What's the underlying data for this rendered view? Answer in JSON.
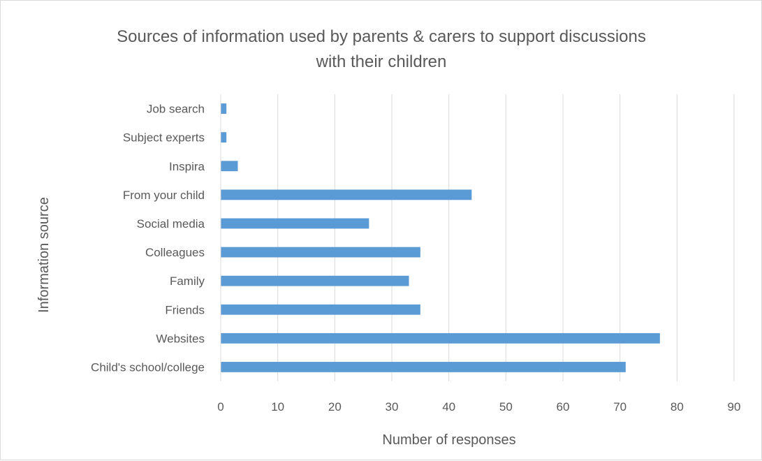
{
  "chart_data": {
    "type": "bar",
    "orientation": "horizontal",
    "title_lines": [
      "Sources of information used by parents & carers to support discussions",
      "with their children"
    ],
    "xlabel": "Number of responses",
    "ylabel": "Information source",
    "categories": [
      "Child's school/college",
      "Websites",
      "Friends",
      "Family",
      "Colleagues",
      "Social media",
      "From your child",
      "Inspira",
      "Subject experts",
      "Job search"
    ],
    "values": [
      71,
      77,
      35,
      33,
      35,
      26,
      44,
      3,
      1,
      1
    ],
    "xlim": [
      0,
      90
    ],
    "xticks": [
      0,
      10,
      20,
      30,
      40,
      50,
      60,
      70,
      80,
      90
    ],
    "grid": "vertical",
    "legend": "none",
    "bar_color": "#5b9bd5",
    "grid_color": "#d9d9d9"
  }
}
